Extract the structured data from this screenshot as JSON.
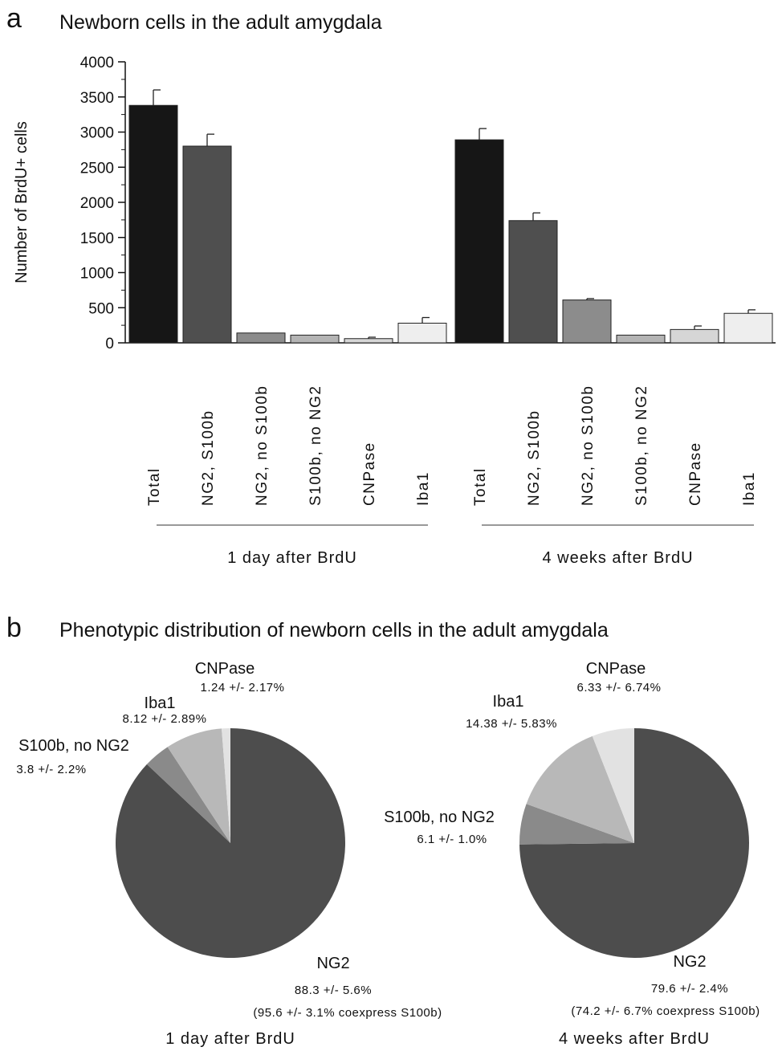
{
  "panel_a": {
    "letter": "a",
    "title": "Newborn cells in the adult amygdala"
  },
  "panel_b": {
    "letter": "b",
    "title": "Phenotypic distribution of newborn cells in the adult amygdala"
  },
  "colors": {
    "total": "#161616",
    "ng2_s100b": "#4f4f4f",
    "ng2_no_s100b": "#8c8c8c",
    "s100b_no_ng2": "#b4b4b4",
    "cnpase": "#d6d6d6",
    "iba1": "#eeeeee",
    "pie_ng2": "#4d4d4d",
    "pie_s100b": "#8a8a8a",
    "pie_iba1": "#b8b8b8",
    "pie_cnpase": "#e2e2e2"
  },
  "chart_data": [
    {
      "type": "bar",
      "title": "Newborn cells in the adult amygdala",
      "ylabel": "Number of BrdU+ cells",
      "ylim": [
        0,
        4000
      ],
      "yticks": [
        "0",
        "500",
        "1000",
        "1500",
        "2000",
        "2500",
        "3000",
        "3500",
        "4000"
      ],
      "categories": [
        "Total",
        "NG2, S100b",
        "NG2, no S100b",
        "S100b, no NG2",
        "CNPase",
        "Iba1"
      ],
      "groups": [
        {
          "label": "1 day after BrdU",
          "values": [
            3380,
            2800,
            140,
            110,
            60,
            280
          ],
          "errors": [
            220,
            170,
            0,
            0,
            20,
            80
          ]
        },
        {
          "label": "4 weeks after BrdU",
          "values": [
            2890,
            1740,
            610,
            110,
            190,
            420
          ],
          "errors": [
            160,
            110,
            20,
            0,
            50,
            50
          ]
        }
      ],
      "grid": false
    },
    {
      "type": "pie",
      "caption": "1 day after BrdU",
      "slices": [
        {
          "name": "NG2",
          "value": 88.3,
          "label": "88.3 +/- 5.6%",
          "note": "(95.6 +/- 3.1% coexpress S100b)"
        },
        {
          "name": "S100b, no NG2",
          "value": 3.8,
          "label": "3.8 +/- 2.2%"
        },
        {
          "name": "Iba1",
          "value": 8.12,
          "label": "8.12 +/- 2.89%"
        },
        {
          "name": "CNPase",
          "value": 1.24,
          "label": "1.24 +/- 2.17%"
        }
      ]
    },
    {
      "type": "pie",
      "caption": "4 weeks after BrdU",
      "slices": [
        {
          "name": "NG2",
          "value": 79.6,
          "label": "79.6 +/- 2.4%",
          "note": "(74.2 +/- 6.7% coexpress S100b)"
        },
        {
          "name": "S100b, no NG2",
          "value": 6.1,
          "label": "6.1 +/- 1.0%"
        },
        {
          "name": "Iba1",
          "value": 14.38,
          "label": "14.38 +/- 5.83%"
        },
        {
          "name": "CNPase",
          "value": 6.33,
          "label": "6.33 +/- 6.74%"
        }
      ]
    }
  ]
}
